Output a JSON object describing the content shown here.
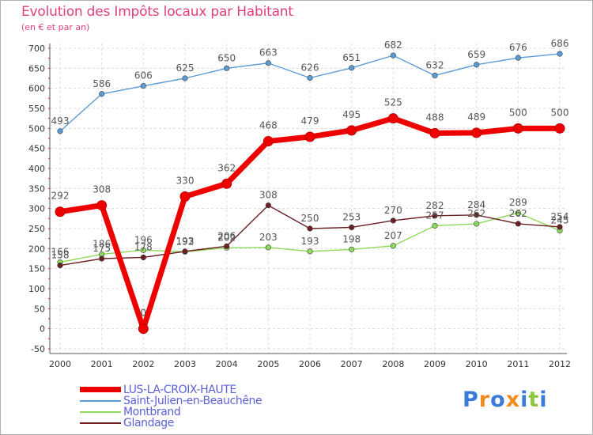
{
  "header": {
    "title": "Evolution des Impôts locaux par Habitant",
    "subtitle": "(en € et par an)"
  },
  "chart_data": {
    "type": "line",
    "title": "Evolution des Impôts locaux par Habitant",
    "subtitle": "(en € et par an)",
    "xlabel": "",
    "ylabel": "",
    "x": [
      2000,
      2001,
      2002,
      2003,
      2004,
      2005,
      2006,
      2007,
      2008,
      2009,
      2010,
      2011,
      2012
    ],
    "ylim": [
      -50,
      700
    ],
    "yticks": [
      -50,
      0,
      50,
      100,
      150,
      200,
      250,
      300,
      350,
      400,
      450,
      500,
      550,
      600,
      650,
      700
    ],
    "grid": true,
    "legend_position": "bottom-left",
    "series": [
      {
        "name": "Saint-Julien-en-Beauchêne",
        "color": "#5b9bd5",
        "values": [
          493,
          586,
          606,
          625,
          650,
          663,
          626,
          651,
          682,
          632,
          659,
          676,
          686
        ]
      },
      {
        "name": "Montbrand",
        "color": "#8fd95a",
        "values": [
          166,
          186,
          196,
          192,
          202,
          203,
          193,
          198,
          207,
          257,
          262,
          289,
          245
        ]
      },
      {
        "name": "Glandage",
        "color": "#6b1f22",
        "values": [
          158,
          175,
          178,
          193,
          206,
          308,
          250,
          253,
          270,
          282,
          284,
          262,
          254
        ]
      },
      {
        "name": "LUS-LA-CROIX-HAUTE",
        "color": "#ee0000",
        "values": [
          292,
          308,
          0,
          330,
          362,
          468,
          479,
          495,
          525,
          488,
          489,
          500,
          500
        ]
      }
    ]
  },
  "legend": {
    "items": [
      {
        "label": "LUS-LA-CROIX-HAUTE",
        "color": "#ee0000"
      },
      {
        "label": "Saint-Julien-en-Beauchêne",
        "color": "#5b9bd5"
      },
      {
        "label": "Montbrand",
        "color": "#8fd95a"
      },
      {
        "label": "Glandage",
        "color": "#6b1f22"
      }
    ]
  },
  "logo": {
    "text": "Proxiti",
    "letter_colors": [
      "#3a7bd5",
      "#f28c1e",
      "#3a7bd5",
      "#f28c1e",
      "#3a7bd5",
      "#8cc63f",
      "#3a7bd5"
    ]
  }
}
